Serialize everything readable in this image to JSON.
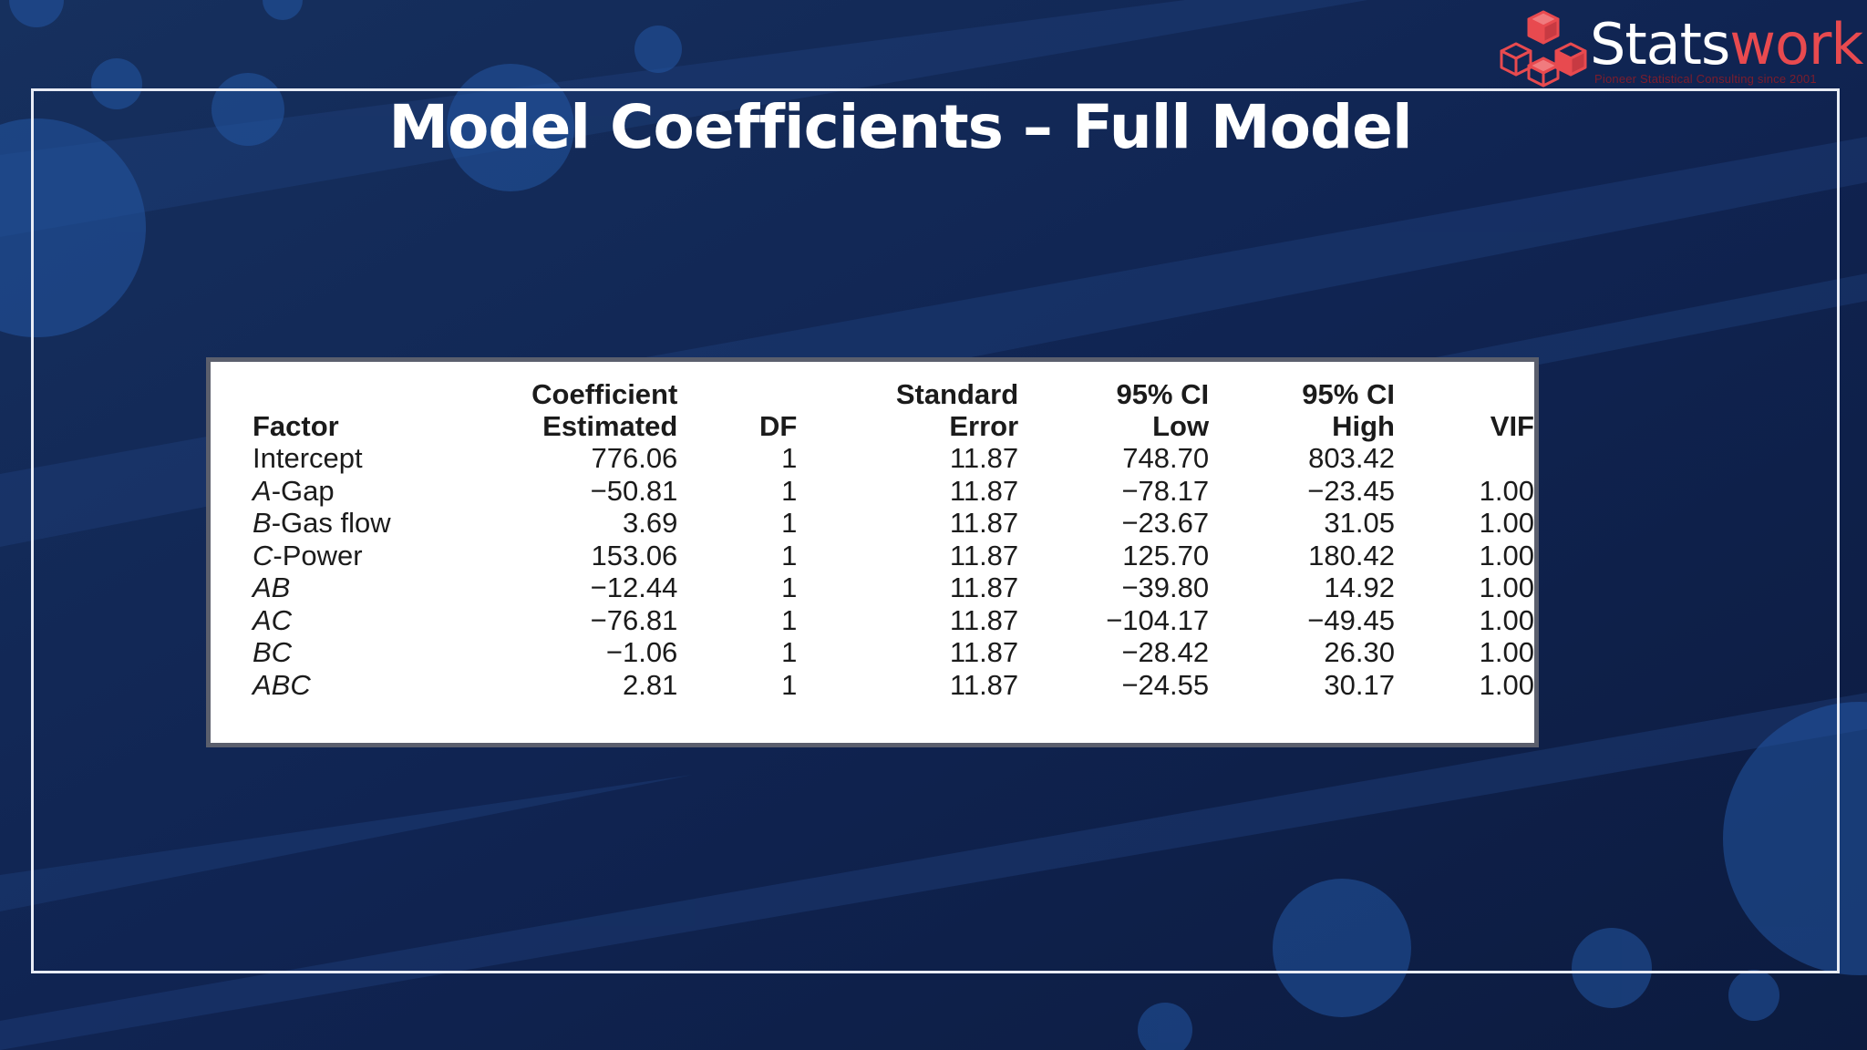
{
  "slide": {
    "title": "Model Coefficients – Full Model"
  },
  "logo": {
    "word_part1": "Stats",
    "word_part2": "work",
    "tagline": "Pioneer Statistical Consulting since 2001"
  },
  "table": {
    "headers": [
      {
        "line1": "",
        "line2": "Factor"
      },
      {
        "line1": "Coefficient",
        "line2": "Estimated"
      },
      {
        "line1": "",
        "line2": "DF"
      },
      {
        "line1": "Standard",
        "line2": "Error"
      },
      {
        "line1": "95% CI",
        "line2": "Low"
      },
      {
        "line1": "95% CI",
        "line2": "High"
      },
      {
        "line1": "",
        "line2": "VIF"
      }
    ],
    "rows": [
      {
        "factor_letter": "",
        "factor_rest": "Intercept",
        "coef": "776.06",
        "df": "1",
        "se": "11.87",
        "ci_low": "748.70",
        "ci_high": "803.42",
        "vif": ""
      },
      {
        "factor_letter": "A",
        "factor_rest": "-Gap",
        "coef": "−50.81",
        "df": "1",
        "se": "11.87",
        "ci_low": "−78.17",
        "ci_high": "−23.45",
        "vif": "1.00"
      },
      {
        "factor_letter": "B",
        "factor_rest": "-Gas flow",
        "coef": "3.69",
        "df": "1",
        "se": "11.87",
        "ci_low": "−23.67",
        "ci_high": "31.05",
        "vif": "1.00"
      },
      {
        "factor_letter": "C",
        "factor_rest": "-Power",
        "coef": "153.06",
        "df": "1",
        "se": "11.87",
        "ci_low": "125.70",
        "ci_high": "180.42",
        "vif": "1.00"
      },
      {
        "factor_letter": "AB",
        "factor_rest": "",
        "coef": "−12.44",
        "df": "1",
        "se": "11.87",
        "ci_low": "−39.80",
        "ci_high": "14.92",
        "vif": "1.00"
      },
      {
        "factor_letter": "AC",
        "factor_rest": "",
        "coef": "−76.81",
        "df": "1",
        "se": "11.87",
        "ci_low": "−104.17",
        "ci_high": "−49.45",
        "vif": "1.00"
      },
      {
        "factor_letter": "BC",
        "factor_rest": "",
        "coef": "−1.06",
        "df": "1",
        "se": "11.87",
        "ci_low": "−28.42",
        "ci_high": "26.30",
        "vif": "1.00"
      },
      {
        "factor_letter": "ABC",
        "factor_rest": "",
        "coef": "2.81",
        "df": "1",
        "se": "11.87",
        "ci_low": "−24.55",
        "ci_high": "30.17",
        "vif": "1.00"
      }
    ]
  },
  "colors": {
    "background": "#10214a",
    "accent_red": "#e84a4f",
    "frame": "#e8ecf5"
  },
  "icons": {
    "logo": "stacked-cubes-icon"
  }
}
